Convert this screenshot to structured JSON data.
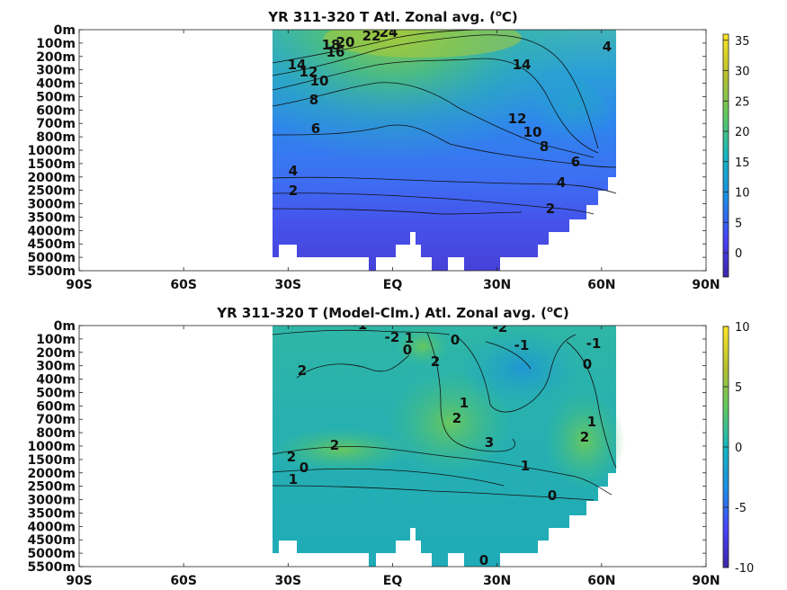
{
  "chart_data": [
    {
      "type": "heatmap",
      "title_main": "YR 311-320 T Atl. Zonal avg. (",
      "title_sup": "o",
      "title_end": "C)",
      "x_ticks": [
        "90S",
        "60S",
        "30S",
        "EQ",
        "30N",
        "60N",
        "90N"
      ],
      "x_values": [
        -90,
        -60,
        -30,
        0,
        30,
        60,
        90
      ],
      "y_ticks": [
        "0m",
        "100m",
        "200m",
        "300m",
        "400m",
        "500m",
        "600m",
        "700m",
        "800m",
        "1000m",
        "1500m",
        "2000m",
        "2500m",
        "3000m",
        "3500m",
        "4000m",
        "4500m",
        "5000m",
        "5500m"
      ],
      "colorbar_ticks": [
        "35",
        "30",
        "25",
        "20",
        "15",
        "10",
        "5",
        "0"
      ],
      "colorbar_range": [
        -4,
        36
      ],
      "colormap": [
        "#3e26a8",
        "#4743f8",
        "#1c8fe4",
        "#18b6c0",
        "#5ec962",
        "#b8c030",
        "#fde725"
      ],
      "contour_labels": [
        "24",
        "22",
        "20",
        "18",
        "16",
        "14",
        "12",
        "10",
        "8",
        "6",
        "4",
        "2",
        "14",
        "12",
        "10",
        "8",
        "6",
        "4",
        "2",
        "4"
      ]
    },
    {
      "type": "heatmap",
      "title_main": "YR 311-320 T (Model-Clm.) Atl. Zonal avg. (",
      "title_sup": "o",
      "title_end": "C)",
      "x_ticks": [
        "90S",
        "60S",
        "30S",
        "EQ",
        "30N",
        "60N",
        "90N"
      ],
      "x_values": [
        -90,
        -60,
        -30,
        0,
        30,
        60,
        90
      ],
      "y_ticks": [
        "0m",
        "100m",
        "200m",
        "300m",
        "400m",
        "500m",
        "600m",
        "700m",
        "800m",
        "1000m",
        "1500m",
        "2000m",
        "2500m",
        "3000m",
        "3500m",
        "4000m",
        "4500m",
        "5000m",
        "5500m"
      ],
      "colorbar_ticks": [
        "10",
        "5",
        "0",
        "-5",
        "-10"
      ],
      "colorbar_range": [
        -10,
        10
      ],
      "colormap": [
        "#3e26a8",
        "#4743f8",
        "#1c8fe4",
        "#18b6c0",
        "#5ec962",
        "#b8c030",
        "#fde725"
      ],
      "contour_labels": [
        "-1",
        "-2",
        "0",
        "1",
        "2",
        "0",
        "2",
        "1",
        "2",
        "3",
        "2",
        "1",
        "0",
        "2",
        "1",
        "0",
        "0",
        "-2",
        "-1",
        "-1",
        "0",
        "1",
        "2"
      ]
    }
  ]
}
